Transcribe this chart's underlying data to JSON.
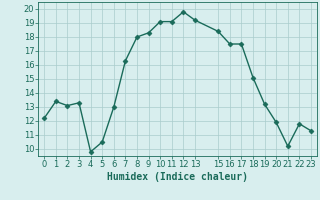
{
  "x": [
    0,
    1,
    2,
    3,
    4,
    5,
    6,
    7,
    8,
    9,
    10,
    11,
    12,
    13,
    15,
    16,
    17,
    18,
    19,
    20,
    21,
    22,
    23
  ],
  "y": [
    12.2,
    13.4,
    13.1,
    13.3,
    9.8,
    10.5,
    13.0,
    16.3,
    18.0,
    18.3,
    19.1,
    19.1,
    19.8,
    19.2,
    18.4,
    17.5,
    17.5,
    15.1,
    13.2,
    11.9,
    10.2,
    11.8,
    11.3
  ],
  "line_color": "#1a6b5a",
  "marker": "D",
  "markersize": 2.5,
  "linewidth": 1.0,
  "bg_color": "#d8eeee",
  "grid_color": "#aacccc",
  "xlabel": "Humidex (Indice chaleur)",
  "xlim": [
    -0.5,
    23.5
  ],
  "ylim": [
    9.5,
    20.5
  ],
  "yticks": [
    10,
    11,
    12,
    13,
    14,
    15,
    16,
    17,
    18,
    19,
    20
  ],
  "xticks": [
    0,
    1,
    2,
    3,
    4,
    5,
    6,
    7,
    8,
    9,
    10,
    11,
    12,
    13,
    15,
    16,
    17,
    18,
    19,
    20,
    21,
    22,
    23
  ],
  "tick_color": "#1a6b5a",
  "label_color": "#1a6b5a",
  "xlabel_fontsize": 7,
  "tick_fontsize": 6,
  "grid_linewidth": 0.5
}
